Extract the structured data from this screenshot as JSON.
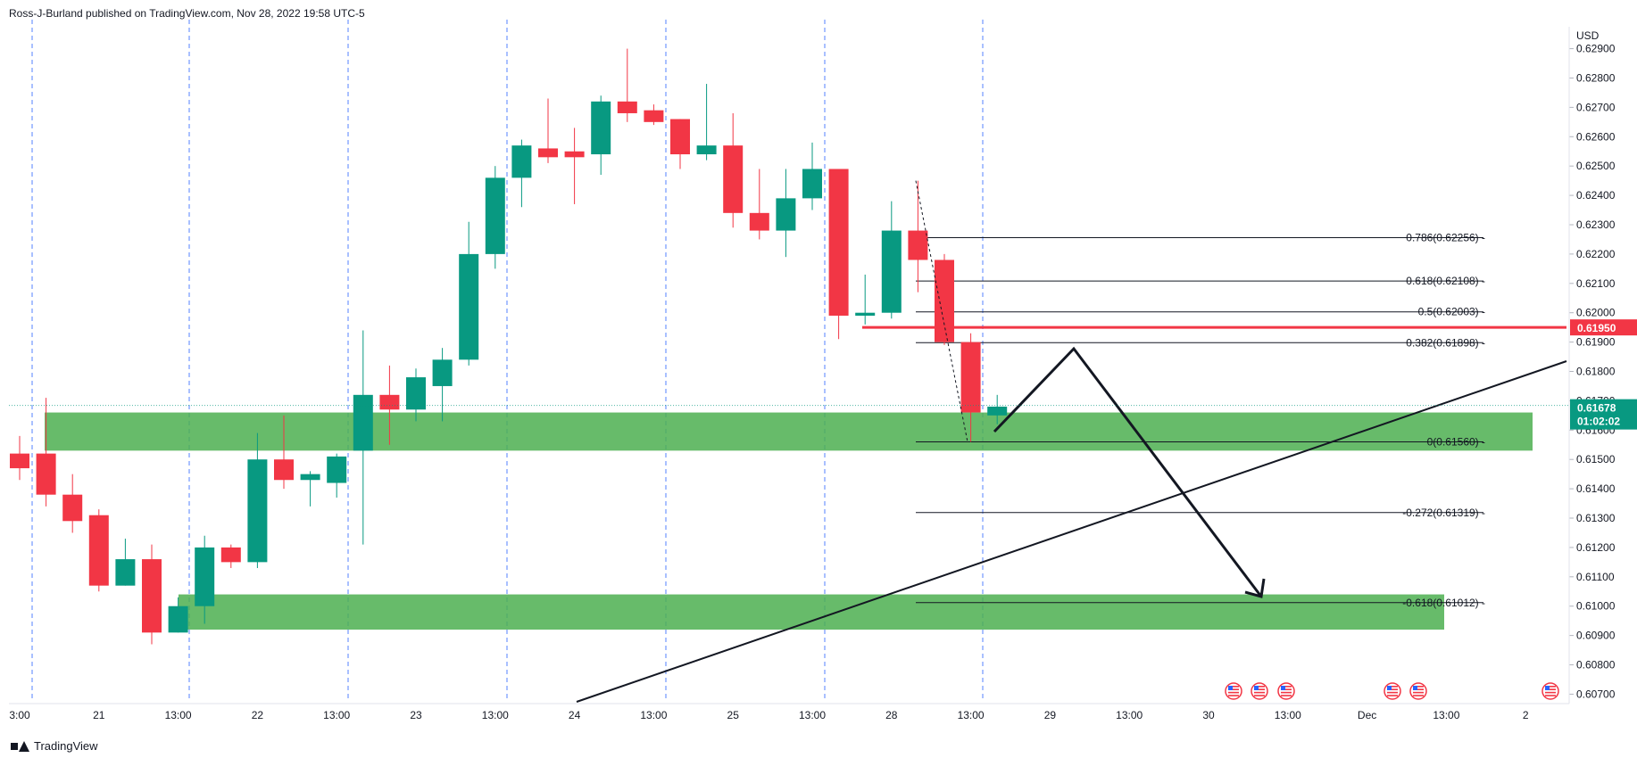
{
  "header": {
    "text": "Ross-J-Burland published on TradingView.com, Nov 28, 2022 19:58 UTC-5"
  },
  "footer": {
    "brand": "TradingView"
  },
  "colors": {
    "up": "#089981",
    "down": "#f23645",
    "zone": "#4caf50",
    "price_line": "#f23645",
    "grid_vline": "#2962ff",
    "text": "#131722"
  },
  "chart_data": {
    "type": "candlestick",
    "currency": "USD",
    "ylim": [
      0.6068,
      0.6292
    ],
    "y_ticks": [
      "0.62900",
      "0.62800",
      "0.62700",
      "0.62600",
      "0.62500",
      "0.62400",
      "0.62300",
      "0.62200",
      "0.62100",
      "0.62000",
      "0.61900",
      "0.61800",
      "0.61700",
      "0.61600",
      "0.61500",
      "0.61400",
      "0.61300",
      "0.61200",
      "0.61100",
      "0.61000",
      "0.60900",
      "0.60800",
      "0.60700"
    ],
    "x_labels": [
      "3:00",
      "21",
      "13:00",
      "22",
      "13:00",
      "23",
      "13:00",
      "24",
      "13:00",
      "25",
      "13:00",
      "28",
      "13:00",
      "29",
      "13:00",
      "30",
      "13:00",
      "Dec",
      "13:00",
      "2"
    ],
    "candles": [
      {
        "o": 0.6152,
        "h": 0.6158,
        "l": 0.6143,
        "c": 0.6147
      },
      {
        "o": 0.6152,
        "h": 0.6171,
        "l": 0.6134,
        "c": 0.6138
      },
      {
        "o": 0.6138,
        "h": 0.6145,
        "l": 0.6125,
        "c": 0.6129
      },
      {
        "o": 0.6131,
        "h": 0.6133,
        "l": 0.6105,
        "c": 0.6107
      },
      {
        "o": 0.6107,
        "h": 0.6123,
        "l": 0.6107,
        "c": 0.6116
      },
      {
        "o": 0.6116,
        "h": 0.6121,
        "l": 0.6087,
        "c": 0.6091
      },
      {
        "o": 0.6091,
        "h": 0.6103,
        "l": 0.6091,
        "c": 0.61
      },
      {
        "o": 0.61,
        "h": 0.6124,
        "l": 0.6094,
        "c": 0.612
      },
      {
        "o": 0.612,
        "h": 0.6121,
        "l": 0.6113,
        "c": 0.6115
      },
      {
        "o": 0.6115,
        "h": 0.6159,
        "l": 0.6113,
        "c": 0.615
      },
      {
        "o": 0.615,
        "h": 0.6165,
        "l": 0.614,
        "c": 0.6143
      },
      {
        "o": 0.6143,
        "h": 0.6146,
        "l": 0.6134,
        "c": 0.6145
      },
      {
        "o": 0.6142,
        "h": 0.6152,
        "l": 0.6137,
        "c": 0.6151
      },
      {
        "o": 0.6153,
        "h": 0.6194,
        "l": 0.6121,
        "c": 0.6172
      },
      {
        "o": 0.6172,
        "h": 0.6182,
        "l": 0.6155,
        "c": 0.6167
      },
      {
        "o": 0.6167,
        "h": 0.6181,
        "l": 0.6163,
        "c": 0.6178
      },
      {
        "o": 0.6175,
        "h": 0.6188,
        "l": 0.6163,
        "c": 0.6184
      },
      {
        "o": 0.6184,
        "h": 0.6231,
        "l": 0.6182,
        "c": 0.622
      },
      {
        "o": 0.622,
        "h": 0.625,
        "l": 0.6215,
        "c": 0.6246
      },
      {
        "o": 0.6246,
        "h": 0.6259,
        "l": 0.6236,
        "c": 0.6257
      },
      {
        "o": 0.6256,
        "h": 0.6273,
        "l": 0.6251,
        "c": 0.6253
      },
      {
        "o": 0.6255,
        "h": 0.6263,
        "l": 0.6237,
        "c": 0.6253
      },
      {
        "o": 0.6254,
        "h": 0.6274,
        "l": 0.6247,
        "c": 0.6272
      },
      {
        "o": 0.6272,
        "h": 0.629,
        "l": 0.6265,
        "c": 0.6268
      },
      {
        "o": 0.6269,
        "h": 0.6271,
        "l": 0.6264,
        "c": 0.6265
      },
      {
        "o": 0.6266,
        "h": 0.6266,
        "l": 0.6249,
        "c": 0.6254
      },
      {
        "o": 0.6254,
        "h": 0.6278,
        "l": 0.6252,
        "c": 0.6257
      },
      {
        "o": 0.6257,
        "h": 0.6268,
        "l": 0.6229,
        "c": 0.6234
      },
      {
        "o": 0.6234,
        "h": 0.6249,
        "l": 0.6225,
        "c": 0.6228
      },
      {
        "o": 0.6228,
        "h": 0.6249,
        "l": 0.6219,
        "c": 0.6239
      },
      {
        "o": 0.6239,
        "h": 0.6258,
        "l": 0.6235,
        "c": 0.6249
      },
      {
        "o": 0.6249,
        "h": 0.6249,
        "l": 0.6191,
        "c": 0.6199
      },
      {
        "o": 0.6199,
        "h": 0.6213,
        "l": 0.6196,
        "c": 0.62
      },
      {
        "o": 0.62,
        "h": 0.6238,
        "l": 0.6198,
        "c": 0.6228
      },
      {
        "o": 0.6228,
        "h": 0.6245,
        "l": 0.6207,
        "c": 0.6218
      },
      {
        "o": 0.6218,
        "h": 0.622,
        "l": 0.6189,
        "c": 0.619
      },
      {
        "o": 0.619,
        "h": 0.6193,
        "l": 0.6156,
        "c": 0.6166
      },
      {
        "o": 0.6165,
        "h": 0.6172,
        "l": 0.6162,
        "c": 0.6168
      }
    ],
    "last_price": "0.61678",
    "countdown": "01:02:02",
    "horizontal_level": "0.61950",
    "fib_levels": [
      {
        "label": "0.786(0.62256)",
        "value": 0.62256
      },
      {
        "label": "0.618(0.62108)",
        "value": 0.62108
      },
      {
        "label": "0.5(0.62003)",
        "value": 0.62003
      },
      {
        "label": "0.382(0.61898)",
        "value": 0.61898
      },
      {
        "label": "0(0.61560)",
        "value": 0.6156
      },
      {
        "label": "-0.272(0.61319)",
        "value": 0.61319
      },
      {
        "label": "-0.618(0.61012)",
        "value": 0.61012
      }
    ],
    "zones": [
      {
        "from": 0.6153,
        "to": 0.6166
      },
      {
        "from": 0.6092,
        "to": 0.6104
      }
    ]
  }
}
